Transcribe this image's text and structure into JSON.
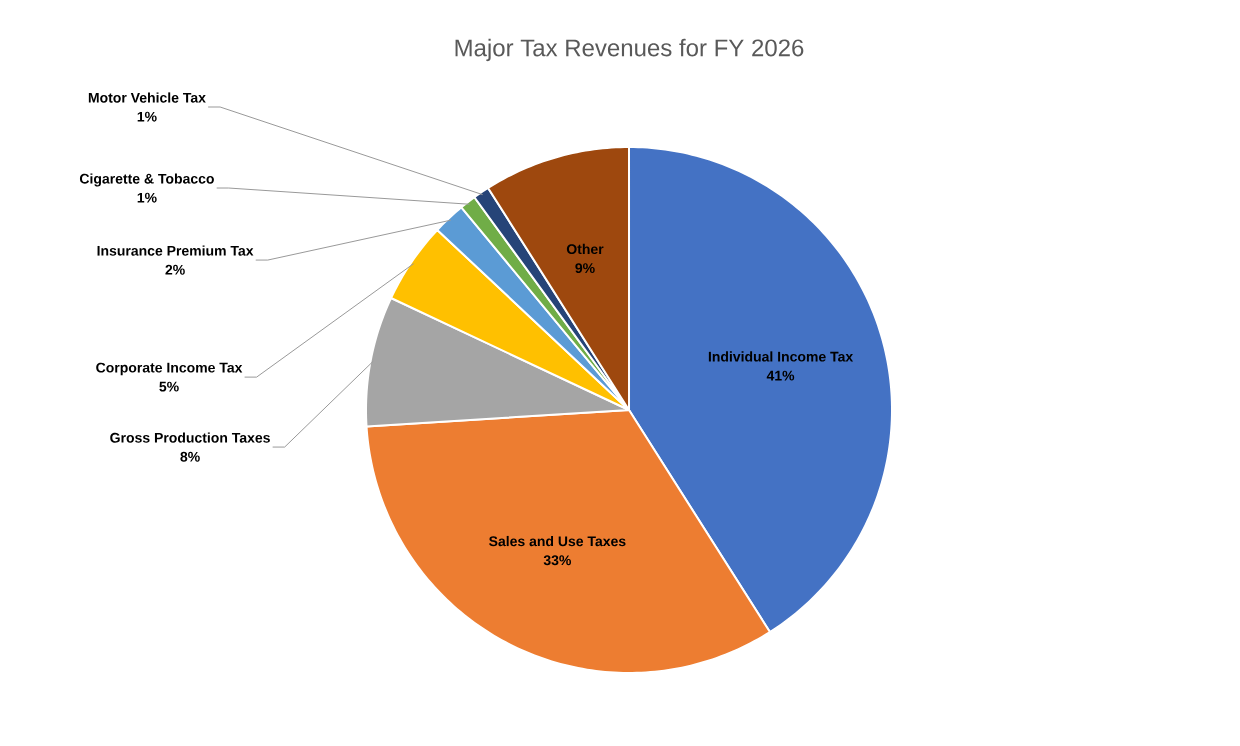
{
  "chart_data": {
    "type": "pie",
    "title": "Major Tax Revenues for FY 2026",
    "categories": [
      "Individual Income Tax",
      "Sales and Use Taxes",
      "Gross Production Taxes",
      "Corporate Income Tax",
      "Insurance Premium Tax",
      "Cigarette & Tobacco",
      "Motor Vehicle Tax",
      "Other"
    ],
    "values": [
      41,
      33,
      8,
      5,
      2,
      1,
      1,
      9
    ],
    "value_labels": [
      "41%",
      "33%",
      "8%",
      "5%",
      "2%",
      "1%",
      "1%",
      "9%"
    ],
    "colors": [
      "#4472c4",
      "#ed7d31",
      "#a5a5a5",
      "#ffc000",
      "#5b9bd5",
      "#70ad47",
      "#264478",
      "#9e480e"
    ]
  }
}
